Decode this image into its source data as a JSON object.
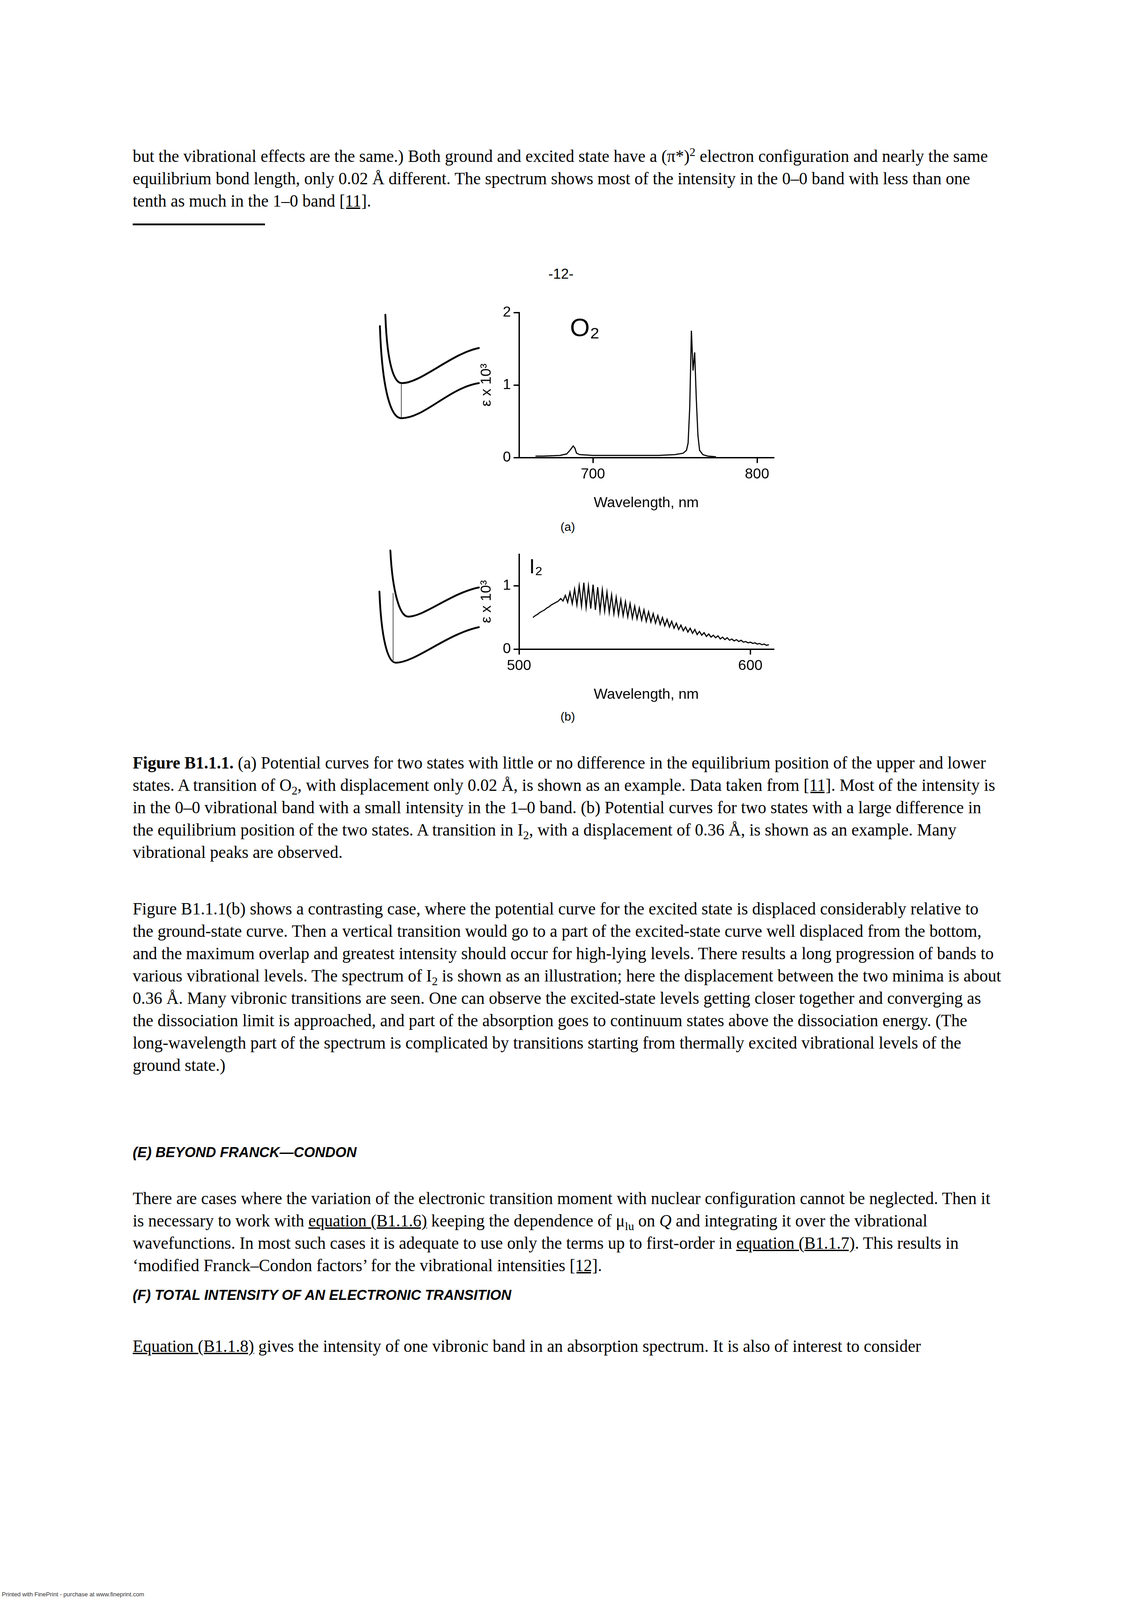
{
  "document": {
    "paragraph_top": [
      "but the vibrational effects are the same.) Both ground and excited state have a (π*)",
      {
        "sup": "2"
      },
      " electron configuration and nearly the same equilibrium bond length, only 0.02 Å different. The spectrum shows most of the intensity in the 0–0 band with less than one tenth as much in the 1–0 band ",
      {
        "link": "[11]"
      },
      "."
    ],
    "page_number": "-12-",
    "caption": [
      {
        "b": "Figure B1.1.1."
      },
      " (a) Potential curves for two states with little or no difference in the equilibrium position of the upper and lower states. A transition of O",
      {
        "sub": "2"
      },
      ", with displacement only 0.02 Å, is shown as an example. Data taken from ",
      {
        "link": "[11]"
      },
      ". Most of the intensity is in the 0–0 vibrational band with a small intensity in the 1–0 band. (b) Potential curves for two states with a large difference in the equilibrium position of the two states. A transition in I",
      {
        "sub": "2"
      },
      ", with a displacement of 0.36 Å, is shown as an example. Many vibrational peaks are observed."
    ],
    "paragraph_b": [
      "Figure B1.1.1(b) shows a contrasting case, where the potential curve for the excited state is displaced considerably relative to the ground-state curve. Then a vertical transition would go to a part of the excited-state curve well displaced from the bottom, and the maximum overlap and greatest intensity should occur for high-lying levels. There results a long progression of bands to various vibrational levels. The spectrum of I",
      {
        "sub": "2"
      },
      " is shown as an illustration; here the displacement between the two minima is about 0.36 Å. Many vibronic transitions are seen. One can observe the excited-state levels getting closer together and converging as the dissociation limit is approached, and part of the absorption goes to continuum states above the dissociation energy. (The long-wavelength part of the spectrum is complicated by transitions starting from thermally excited vibrational levels of the ground state.)"
    ],
    "heading_e": "(E) BEYOND FRANCK—CONDON",
    "paragraph_e": [
      "There are cases where the variation of the electronic transition moment with nuclear configuration cannot be neglected. Then it is necessary to work with ",
      {
        "link": "equation (B1.1.6)"
      },
      " keeping the dependence of μ",
      {
        "sub": "lu"
      },
      " on ",
      {
        "i": "Q"
      },
      " and integrating it over the vibrational wavefunctions. In most such cases it is adequate to use only the terms up to first-order in ",
      {
        "link": "equation (B1.1.7)"
      },
      ". This results in ‘modified Franck–Condon factors’ for the vibrational intensities ",
      {
        "link": "[12]"
      },
      "."
    ],
    "heading_f": "(F) TOTAL INTENSITY OF AN ELECTRONIC TRANSITION",
    "paragraph_f": [
      {
        "link": "Equation (B1.1.8)"
      },
      " gives the intensity of one vibronic band in an absorption spectrum. It is also of interest to consider"
    ],
    "footer": "Printed with FinePrint - purchase at www.fineprint.com"
  },
  "chart_data": [
    {
      "type": "line",
      "title": "O₂",
      "panel": "(a)",
      "x_label": "Wavelength, nm",
      "y_label": "ε x 10³",
      "x": [
        665,
        670,
        680,
        684,
        686,
        688,
        689,
        690,
        692,
        700,
        720,
        740,
        750,
        755,
        757,
        758,
        759,
        760,
        761,
        762,
        763,
        764,
        765,
        767,
        770,
        775
      ],
      "values": [
        0.02,
        0.02,
        0.03,
        0.05,
        0.1,
        0.16,
        0.13,
        0.06,
        0.04,
        0.03,
        0.03,
        0.03,
        0.04,
        0.06,
        0.1,
        0.2,
        0.7,
        1.75,
        1.2,
        1.45,
        0.8,
        0.3,
        0.1,
        0.04,
        0.02,
        0.01
      ],
      "color": "#000000",
      "xlim": [
        655,
        810
      ],
      "xticks": [
        700,
        800
      ],
      "ylim": [
        0,
        2
      ],
      "yticks": [
        0,
        1,
        2
      ],
      "grid": false
    },
    {
      "type": "line",
      "title": "I₂",
      "panel": "(b)",
      "x_label": "Wavelength, nm",
      "y_label": "ε x 10³",
      "x": [
        506,
        507,
        508,
        509,
        510,
        511,
        512,
        513,
        514,
        515,
        516,
        517,
        518,
        519,
        520,
        521,
        522,
        523,
        524,
        525,
        526,
        527,
        528,
        529,
        530,
        531,
        532,
        533,
        534,
        535,
        536,
        537,
        538,
        539,
        540,
        541,
        542,
        543,
        544,
        545,
        546,
        547,
        548,
        549,
        550,
        551,
        552,
        553,
        554,
        555,
        556,
        557,
        558,
        559,
        560,
        561,
        562,
        563,
        564,
        565,
        566,
        567,
        568,
        569,
        570,
        571,
        572,
        573,
        574,
        575,
        576,
        577,
        578,
        579,
        580,
        581,
        582,
        583,
        584,
        585,
        586,
        587,
        588,
        589,
        590,
        591,
        592,
        593,
        594,
        595,
        596,
        597,
        598,
        599,
        600,
        601,
        602,
        603,
        604,
        605,
        606,
        607,
        608
      ],
      "values": [
        0.5,
        0.53,
        0.55,
        0.58,
        0.6,
        0.62,
        0.65,
        0.67,
        0.7,
        0.72,
        0.74,
        0.76,
        0.8,
        0.76,
        0.85,
        0.74,
        0.9,
        0.72,
        0.95,
        0.7,
        1.0,
        0.68,
        1.05,
        0.66,
        1.0,
        0.64,
        1.02,
        0.62,
        0.98,
        0.6,
        0.94,
        0.6,
        0.9,
        0.58,
        0.86,
        0.56,
        0.82,
        0.54,
        0.78,
        0.53,
        0.75,
        0.51,
        0.72,
        0.49,
        0.68,
        0.48,
        0.65,
        0.46,
        0.62,
        0.44,
        0.59,
        0.43,
        0.56,
        0.41,
        0.53,
        0.39,
        0.5,
        0.37,
        0.47,
        0.35,
        0.44,
        0.33,
        0.41,
        0.31,
        0.38,
        0.29,
        0.35,
        0.27,
        0.33,
        0.25,
        0.31,
        0.23,
        0.28,
        0.22,
        0.26,
        0.2,
        0.24,
        0.19,
        0.22,
        0.18,
        0.21,
        0.16,
        0.19,
        0.15,
        0.18,
        0.14,
        0.16,
        0.13,
        0.15,
        0.12,
        0.14,
        0.11,
        0.12,
        0.1,
        0.11,
        0.09,
        0.1,
        0.08,
        0.09,
        0.07,
        0.08,
        0.06,
        0.07
      ],
      "color": "#000000",
      "xlim": [
        500,
        610
      ],
      "xticks": [
        500,
        600
      ],
      "ylim": [
        0,
        1.5
      ],
      "yticks": [
        0,
        1
      ],
      "grid": false
    }
  ]
}
